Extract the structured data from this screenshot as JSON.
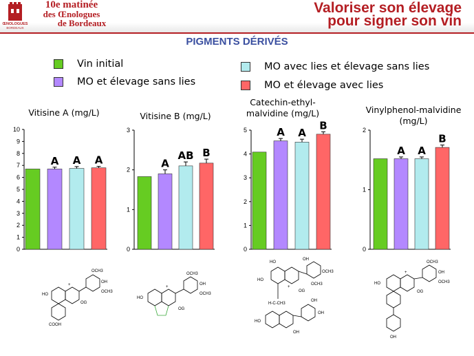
{
  "header": {
    "matinee_line1": "10e matinée",
    "matinee_line2": "des Œnologues",
    "matinee_line3": "de Bordeaux",
    "logo_text": "ŒNOLOGUES",
    "logo_sub": "BORDEAUX",
    "banner_line1": "Valoriser son élevage",
    "banner_line2": "pour signer son vin"
  },
  "section_title": "PIGMENTS DÉRIVÉS",
  "legend": [
    {
      "label": "Vin initial",
      "color": "#66cc22"
    },
    {
      "label": "MO et élevage sans lies",
      "color": "#b388ff"
    },
    {
      "label": "MO avec lies et élevage sans lies",
      "color": "#b2ebee"
    },
    {
      "label": "MO et élevage avec lies",
      "color": "#ff6666"
    }
  ],
  "chart_data": [
    {
      "type": "bar",
      "title": "Vitisine A (mg/L)",
      "categories": [
        "Vin initial",
        "MO et élevage sans lies",
        "MO avec lies et élevage sans lies",
        "MO et élevage avec lies"
      ],
      "values": [
        6.7,
        6.7,
        6.75,
        6.8
      ],
      "errors": [
        0,
        0.15,
        0.15,
        0.12
      ],
      "labels": [
        "",
        "A",
        "A",
        "A"
      ],
      "ylim": [
        0,
        10
      ],
      "yticks": [
        "0",
        "1",
        "2",
        "3",
        "4",
        "5",
        "6",
        "7",
        "8",
        "9",
        "10"
      ]
    },
    {
      "type": "bar",
      "title": "Vitisine B (mg/L)",
      "categories": [
        "Vin initial",
        "MO et élevage sans lies",
        "MO avec lies et élevage sans lies",
        "MO et élevage avec lies"
      ],
      "values": [
        1.83,
        1.9,
        2.1,
        2.17
      ],
      "errors": [
        0,
        0.1,
        0.1,
        0.1
      ],
      "labels": [
        "",
        "A",
        "AB",
        "B"
      ],
      "ylim": [
        0,
        3
      ],
      "yticks": [
        "0",
        "1",
        "2",
        "3"
      ]
    },
    {
      "type": "bar",
      "title": "Catechin-ethyl-malvidine (mg/L)",
      "categories": [
        "Vin initial",
        "MO et élevage sans lies",
        "MO avec lies et élevage sans lies",
        "MO et élevage avec lies"
      ],
      "values": [
        4.08,
        4.55,
        4.5,
        4.83
      ],
      "errors": [
        0,
        0.1,
        0.12,
        0.1
      ],
      "labels": [
        "",
        "A",
        "A",
        "B"
      ],
      "ylim": [
        0,
        5
      ],
      "yticks": [
        "0",
        "1",
        "2",
        "3",
        "4",
        "5"
      ]
    },
    {
      "type": "bar",
      "title": "Vinylphenol-malvidine (mg/L)",
      "categories": [
        "Vin initial",
        "MO et élevage sans lies",
        "MO avec lies et élevage sans lies",
        "MO et élevage avec lies"
      ],
      "values": [
        1.52,
        1.52,
        1.52,
        1.71
      ],
      "errors": [
        0,
        0.03,
        0.03,
        0.04
      ],
      "labels": [
        "",
        "A",
        "A",
        "B"
      ],
      "ylim": [
        0,
        2
      ],
      "yticks": [
        "0",
        "1",
        "2"
      ]
    }
  ],
  "structures": {
    "s1": {
      "och3_top": "OCH3",
      "ho": "HO",
      "plus": "+",
      "og": "OG",
      "och3_right": "OCH3",
      "oh_mid": "OH",
      "cooh": "COOH"
    },
    "s2": {
      "och3_top": "OCH3",
      "oh": "OH",
      "och3_right": "OCH3",
      "ho": "HO",
      "plus": "+",
      "og": "OG"
    },
    "s3": {
      "ho": "HO",
      "oh_top": "OH",
      "ho_left": "HO",
      "plus": "+",
      "och3_a": "OCH3",
      "och3_b": "OCH3",
      "og": "OG",
      "h_c_ch3": "H-C-CH3",
      "oh_r1": "OH",
      "oh_r2": "OH",
      "ho2": "HO",
      "oh_b": "OH"
    },
    "s4": {
      "och3_top": "OCH3",
      "oh": "OH",
      "och3_right": "OCH3",
      "ho": "HO",
      "plus": "+",
      "og": "OG",
      "oh_bottom": "OH"
    }
  }
}
